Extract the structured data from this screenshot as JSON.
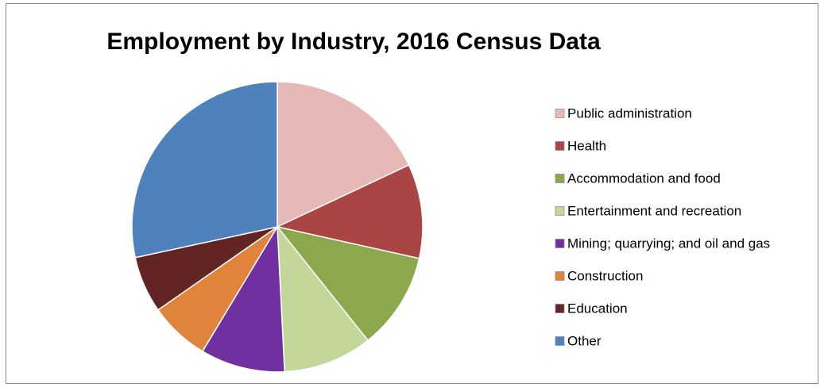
{
  "chart_data": {
    "type": "pie",
    "title": "Employment by Industry, 2016 Census Data",
    "categories": [
      "Public administration",
      "Health",
      "Accommodation and food",
      "Entertainment and recreation",
      "Mining; quarrying; and oil and gas",
      "Construction",
      "Education",
      "Other"
    ],
    "values": [
      18,
      10.5,
      10.8,
      9.9,
      9.4,
      6.7,
      6.3,
      28.4
    ],
    "colors": [
      "#E6B9B8",
      "#A94542",
      "#8BA84C",
      "#C4D79B",
      "#7030A0",
      "#E0843C",
      "#632523",
      "#4F81BD"
    ],
    "legend": "right"
  }
}
